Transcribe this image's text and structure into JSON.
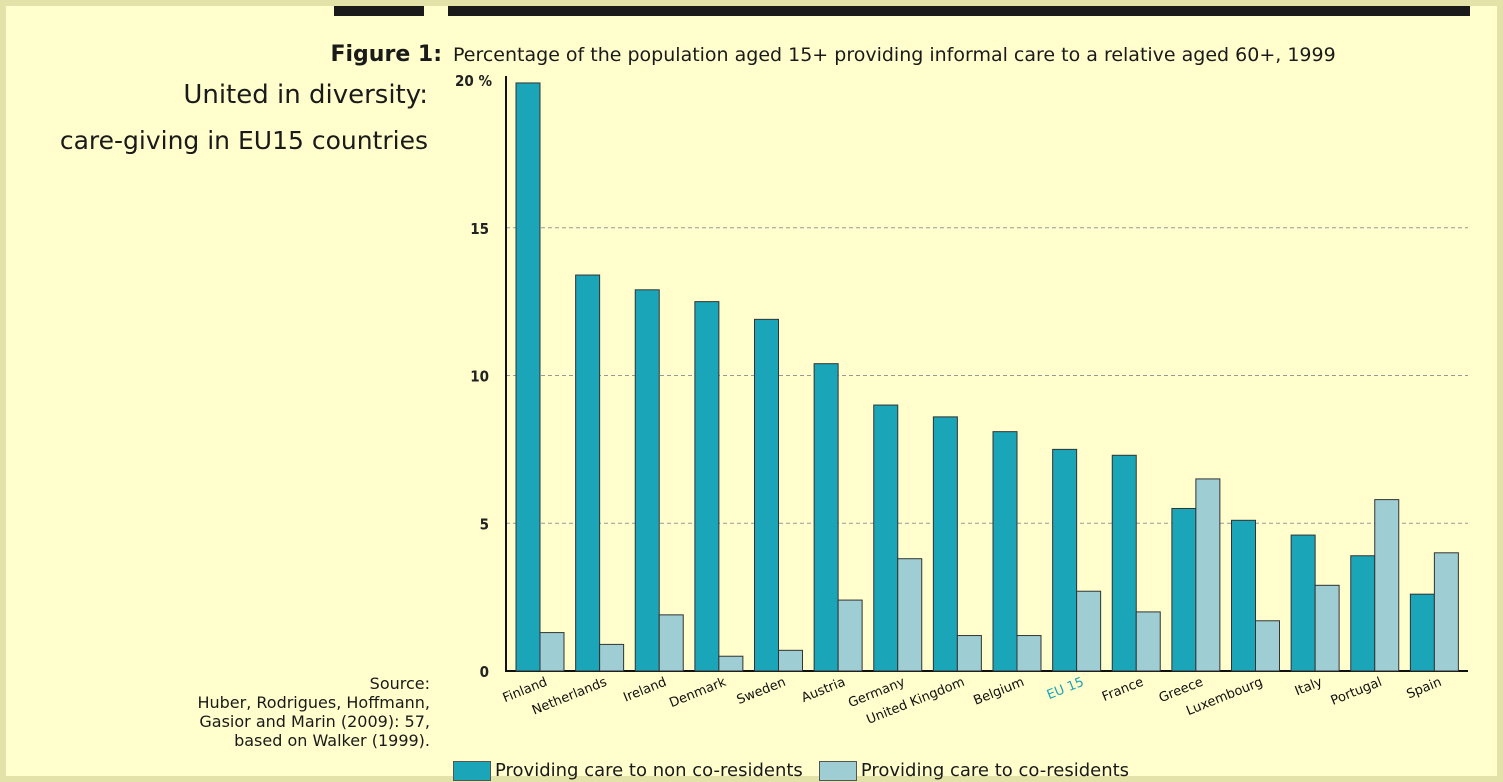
{
  "figure_label": "Figure 1:",
  "figure_title": "Percentage of the population aged 15+ providing informal care to a relative aged 60+, 1999",
  "side_title_line1": "United in diversity:",
  "side_title_line2": "care-giving in EU15 countries",
  "source_text": "Source:\nHuber, Rodrigues, Hoffmann,\nGasior and Marin (2009): 57,\nbased on Walker (1999).",
  "colors": {
    "non_coresidents": "#1aa5b8",
    "coresidents": "#9ecdd3",
    "highlight_label": "#1aa5b8",
    "background": "#fffecc"
  },
  "chart_data": {
    "type": "bar",
    "title": "Percentage of the population aged 15+ providing informal care to a relative aged 60+, 1999",
    "xlabel": "",
    "ylabel": "",
    "ylim": [
      0,
      20
    ],
    "y_ticks": [
      "0",
      "5",
      "10",
      "15",
      "20 %"
    ],
    "grid": true,
    "legend_position": "bottom",
    "highlighted_category": "EU 15",
    "categories": [
      "Finland",
      "Netherlands",
      "Ireland",
      "Denmark",
      "Sweden",
      "Austria",
      "Germany",
      "United Kingdom",
      "Belgium",
      "EU 15",
      "France",
      "Greece",
      "Luxembourg",
      "Italy",
      "Portugal",
      "Spain"
    ],
    "series": [
      {
        "name": "Providing care to non co-residents",
        "values": [
          19.9,
          13.4,
          12.9,
          12.5,
          11.9,
          10.4,
          9.0,
          8.6,
          8.1,
          7.5,
          7.3,
          5.5,
          5.1,
          4.6,
          3.9,
          2.6
        ]
      },
      {
        "name": "Providing care to co-residents",
        "values": [
          1.3,
          0.9,
          1.9,
          0.5,
          0.7,
          2.4,
          3.8,
          1.2,
          1.2,
          2.7,
          2.0,
          6.5,
          1.7,
          2.9,
          5.8,
          4.0
        ]
      }
    ]
  }
}
